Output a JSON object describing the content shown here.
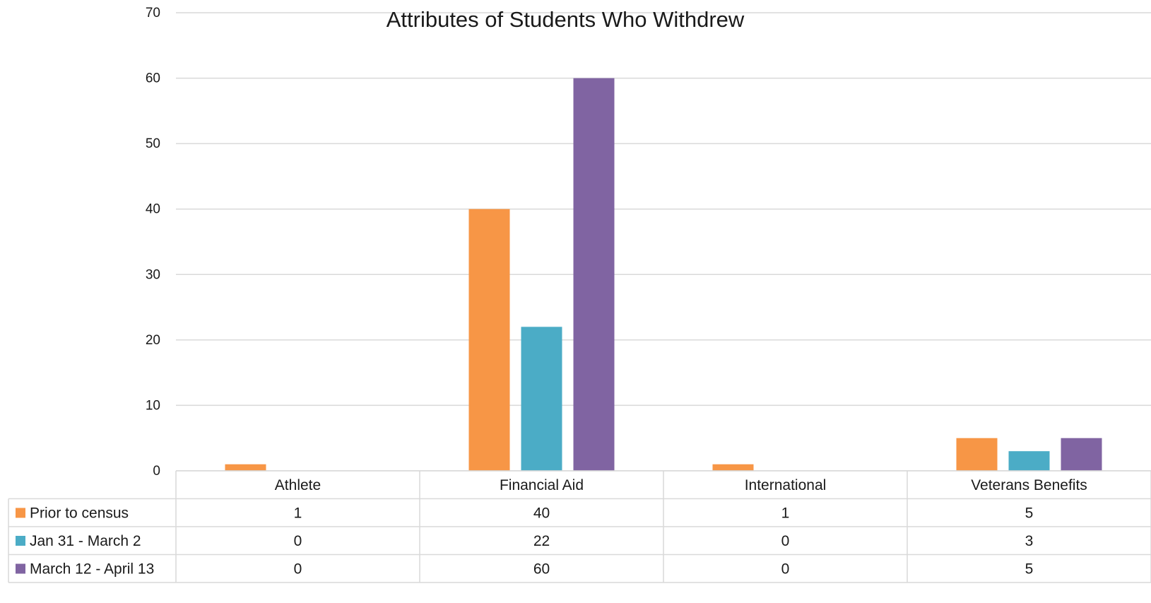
{
  "chart_data": {
    "type": "bar",
    "title": "Attributes of Students Who Withdrew",
    "categories": [
      "Athlete",
      "Financial Aid",
      "International",
      "Veterans Benefits"
    ],
    "series": [
      {
        "name": "Prior to census",
        "color": "#F79646",
        "values": [
          1,
          40,
          1,
          5
        ]
      },
      {
        "name": "Jan 31 - March 2",
        "color": "#4BACC6",
        "values": [
          0,
          22,
          0,
          3
        ]
      },
      {
        "name": "March 12 - April 13",
        "color": "#8064A2",
        "values": [
          0,
          60,
          0,
          5
        ]
      }
    ],
    "ylim": [
      0,
      70
    ],
    "yticks": [
      0,
      10,
      20,
      30,
      40,
      50,
      60,
      70
    ],
    "grid": true,
    "legend": "data-table"
  },
  "colors": {
    "gridline": "#d9d9d9",
    "table_border": "#d9d9d9"
  }
}
